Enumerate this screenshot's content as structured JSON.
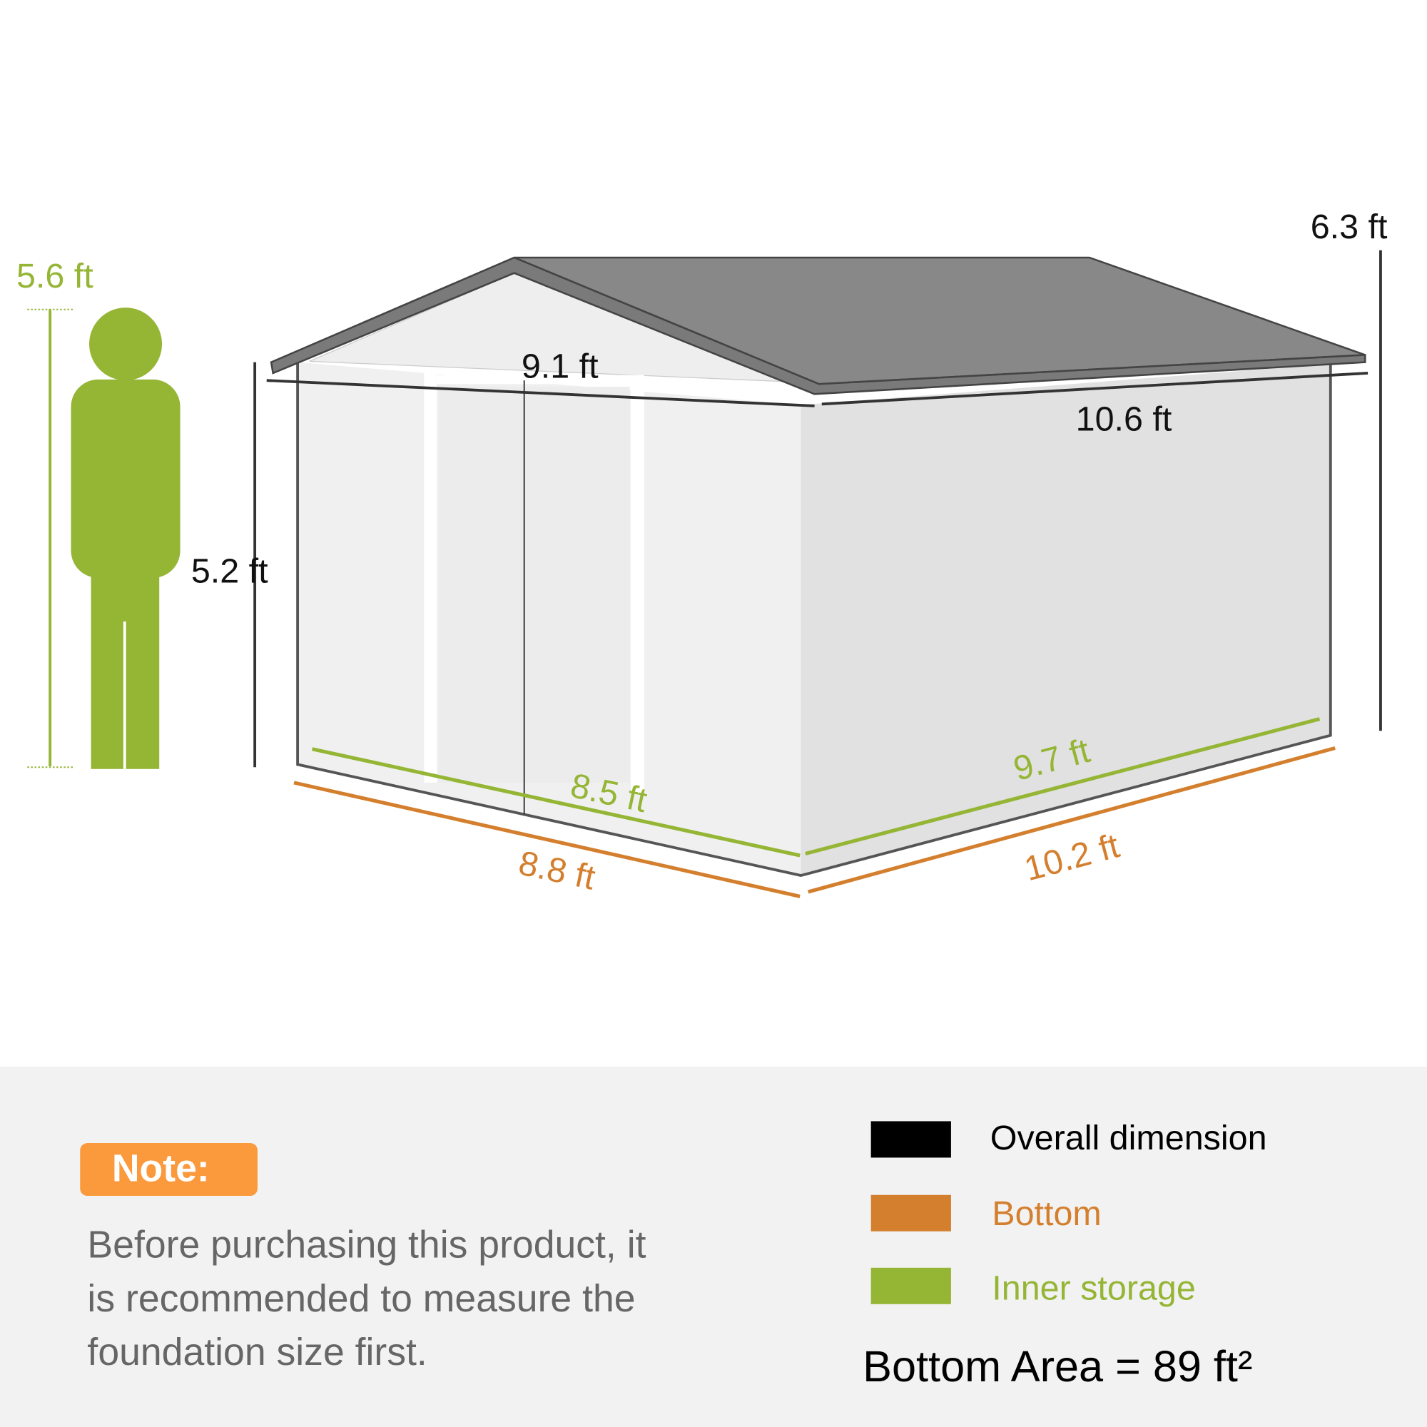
{
  "colors": {
    "overall": "#000000",
    "bottom": "#d47f2e",
    "inner": "#95b535",
    "note_badge": "#fa9a3c",
    "panel": "#f2f2f2"
  },
  "person": {
    "height_label": "5.6 ft"
  },
  "dimensions": {
    "front_width_top": "9.1 ft",
    "side_length_top": "10.6 ft",
    "wall_height": "5.2 ft",
    "peak_height": "6.3 ft",
    "inner_front": "8.5 ft",
    "inner_side": "9.7 ft",
    "bottom_front": "8.8 ft",
    "bottom_side": "10.2 ft"
  },
  "note": {
    "badge": "Note:",
    "lines": [
      "Before purchasing this product, it",
      "is recommended to measure the",
      "foundation size first."
    ]
  },
  "legend": [
    {
      "label": "Overall dimension",
      "color": "#000000"
    },
    {
      "label": "Bottom",
      "color": "#d47f2e"
    },
    {
      "label": "Inner storage",
      "color": "#95b535"
    }
  ],
  "bottom_area": "Bottom Area = 89 ft²"
}
